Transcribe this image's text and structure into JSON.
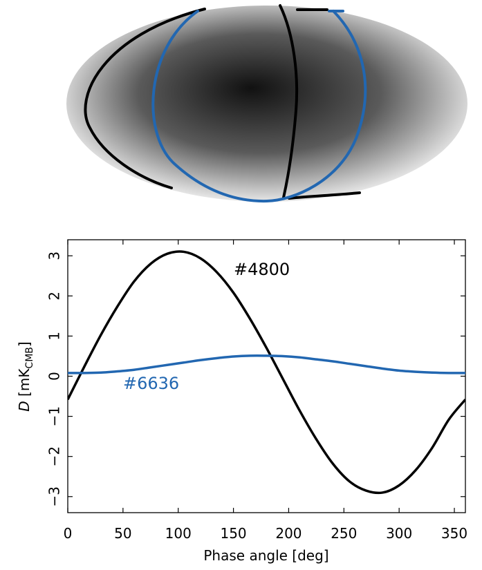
{
  "colors": {
    "series_4800": "#000000",
    "series_6636": "#2267b1",
    "map_dark": "#111111",
    "map_light": "#f2f2f2"
  },
  "map": {
    "projection": "mollweide",
    "colormap": "grayscale"
  },
  "chart_data": {
    "type": "line",
    "title": "",
    "xlabel": "Phase angle [deg]",
    "ylabel_main": "D",
    "ylabel_unit_open": " [mK",
    "ylabel_unit_sub": "CMB",
    "ylabel_unit_close": "]",
    "xlim": [
      0,
      360
    ],
    "ylim": [
      -3.4,
      3.4
    ],
    "xticks": [
      0,
      50,
      100,
      150,
      200,
      250,
      300,
      350
    ],
    "yticks": [
      -3,
      -2,
      -1,
      0,
      1,
      2,
      3
    ],
    "ytick_labels": [
      "−3",
      "−2",
      "−1",
      "0",
      "1",
      "2",
      "3"
    ],
    "grid": false,
    "series": [
      {
        "name": "#4800",
        "color": "#000000",
        "x": [
          0,
          15,
          30,
          45,
          60,
          75,
          90,
          105,
          120,
          135,
          150,
          165,
          180,
          195,
          210,
          225,
          240,
          255,
          270,
          285,
          300,
          315,
          330,
          345,
          360
        ],
        "y": [
          -0.58,
          0.24,
          1.03,
          1.74,
          2.36,
          2.8,
          3.05,
          3.1,
          2.94,
          2.59,
          2.08,
          1.43,
          0.7,
          -0.08,
          -0.86,
          -1.57,
          -2.18,
          -2.62,
          -2.85,
          -2.9,
          -2.72,
          -2.34,
          -1.78,
          -1.08,
          -0.58
        ]
      },
      {
        "name": "#6636",
        "color": "#2267b1",
        "x": [
          0,
          15,
          30,
          45,
          60,
          75,
          90,
          105,
          120,
          135,
          150,
          165,
          180,
          195,
          210,
          225,
          240,
          255,
          270,
          285,
          300,
          315,
          330,
          345,
          360
        ],
        "y": [
          0.08,
          0.08,
          0.09,
          0.12,
          0.16,
          0.22,
          0.28,
          0.34,
          0.4,
          0.45,
          0.49,
          0.51,
          0.51,
          0.5,
          0.47,
          0.42,
          0.37,
          0.31,
          0.25,
          0.19,
          0.14,
          0.11,
          0.09,
          0.08,
          0.08
        ]
      }
    ]
  }
}
